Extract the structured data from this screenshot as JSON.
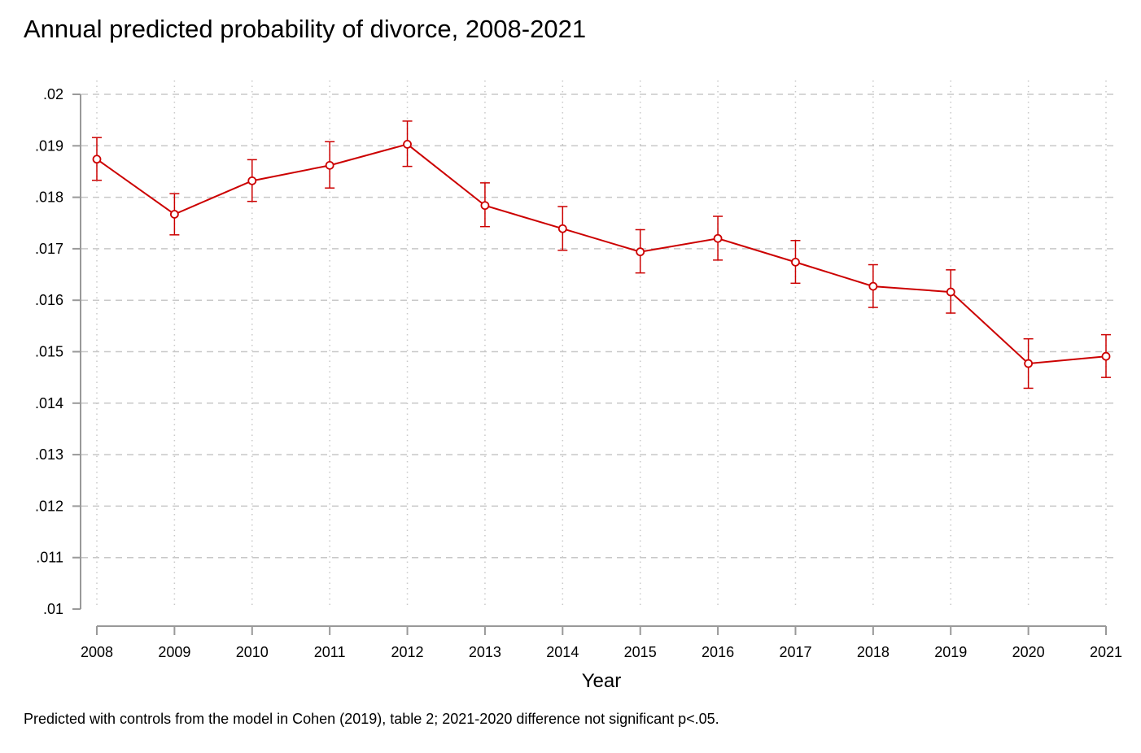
{
  "chart_data": {
    "type": "line",
    "title": "Annual predicted probability of divorce, 2008-2021",
    "note": "Predicted with controls from the model in Cohen (2019), table 2; 2021-2020 difference not significant p<.05.",
    "xlabel": "Year",
    "ylabel": "",
    "x": [
      2008,
      2009,
      2010,
      2011,
      2012,
      2013,
      2014,
      2015,
      2016,
      2017,
      2018,
      2019,
      2020,
      2021
    ],
    "x_tick_labels": [
      "2008",
      "2009",
      "2010",
      "2011",
      "2012",
      "2013",
      "2014",
      "2015",
      "2016",
      "2017",
      "2018",
      "2019",
      "2020",
      "2021"
    ],
    "y_ticks": [
      0.01,
      0.011,
      0.012,
      0.013,
      0.014,
      0.015,
      0.016,
      0.017,
      0.018,
      0.019,
      0.02
    ],
    "y_tick_labels": [
      ".01",
      ".011",
      ".012",
      ".013",
      ".014",
      ".015",
      ".016",
      ".017",
      ".018",
      ".019",
      ".02"
    ],
    "ylim": [
      0.01,
      0.02
    ],
    "grid": {
      "horizontal": "dashed",
      "vertical": "dotted"
    },
    "series": [
      {
        "values": [
          0.01874,
          0.01767,
          0.01832,
          0.01862,
          0.01903,
          0.01784,
          0.01739,
          0.01694,
          0.0172,
          0.01674,
          0.01627,
          0.01616,
          0.01477,
          0.01491
        ],
        "ci_low": [
          0.01833,
          0.01727,
          0.01792,
          0.01818,
          0.0186,
          0.01743,
          0.01697,
          0.01653,
          0.01678,
          0.01633,
          0.01586,
          0.01575,
          0.01429,
          0.0145
        ],
        "ci_high": [
          0.01916,
          0.01807,
          0.01873,
          0.01908,
          0.01948,
          0.01828,
          0.01782,
          0.01737,
          0.01763,
          0.01716,
          0.01669,
          0.01659,
          0.01525,
          0.01533
        ],
        "color": "#cc0000"
      }
    ],
    "colors": {
      "series": "#cc0000",
      "grid": "#c8c8c8",
      "axis": "#999999"
    }
  }
}
